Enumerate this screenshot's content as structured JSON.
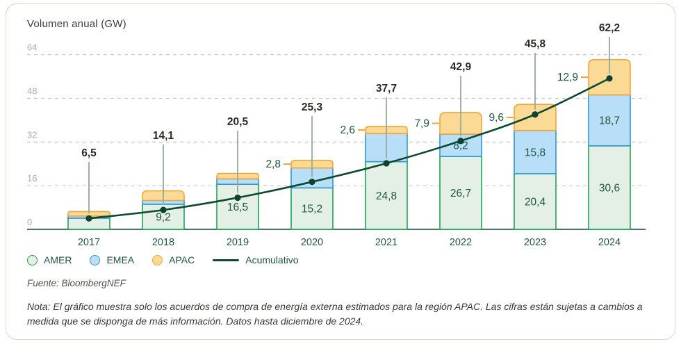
{
  "chart_data": {
    "type": "bar",
    "stacked": true,
    "title": "Volumen anual (GW)",
    "categories": [
      "2017",
      "2018",
      "2019",
      "2020",
      "2021",
      "2022",
      "2023",
      "2024"
    ],
    "series": [
      {
        "name": "AMER",
        "fill": "#e4f0e6",
        "stroke": "#1ea355",
        "values": [
          4.1,
          9.2,
          16.5,
          15.2,
          24.8,
          26.7,
          20.4,
          30.6
        ],
        "value_labels": [
          "",
          "9,2",
          "16,5",
          "15,2",
          "24,8",
          "26,7",
          "20,4",
          "30,6"
        ]
      },
      {
        "name": "EMEA",
        "fill": "#b9def7",
        "stroke": "#2e97d8",
        "values": [
          0.8,
          1.4,
          2.0,
          7.3,
          10.3,
          8.2,
          15.8,
          18.7
        ],
        "value_labels": [
          "",
          "",
          "",
          "",
          "",
          "8,2",
          "15,8",
          "18,7"
        ]
      },
      {
        "name": "APAC",
        "fill": "#fbda96",
        "stroke": "#f2a43c",
        "values": [
          1.6,
          3.5,
          2.0,
          2.8,
          2.6,
          7.9,
          9.6,
          12.9
        ],
        "value_labels": [
          "",
          "",
          "",
          "2,8",
          "2,6",
          "7,9",
          "9,6",
          "12,9"
        ]
      }
    ],
    "totals_labels": [
      "6,5",
      "14,1",
      "20,5",
      "25,3",
      "37,7",
      "42,9",
      "45,8",
      "62,2"
    ],
    "line_series": {
      "name": "Acumulativo",
      "color": "#0b4a2f",
      "dot_color": "#0b4330",
      "plotted_values_axis_scale": [
        4.0,
        7.1,
        11.6,
        17.4,
        24.2,
        32.4,
        42.1,
        55.3
      ]
    },
    "y_axis": {
      "ticks": [
        0,
        16,
        32,
        48,
        64
      ],
      "max": 66,
      "grid": "dashed"
    },
    "style": {
      "grid_color": "#cdc5b8",
      "tick_label_color": "#b5ac9e",
      "axis_line_color": "#0e4a30",
      "value_label_color": "#1d5740",
      "total_label_color": "#2d2a26",
      "year_label_color": "#1d5740",
      "callout_color": "#93ab9d"
    }
  },
  "legend": {
    "items": [
      {
        "label": "AMER",
        "swatch": "circle",
        "fill": "#e4f0e6",
        "border": "#1ea355"
      },
      {
        "label": "EMEA",
        "swatch": "circle",
        "fill": "#b9def7",
        "border": "#2e97d8"
      },
      {
        "label": "APAC",
        "swatch": "circle",
        "fill": "#fbda96",
        "border": "#f2a43c"
      },
      {
        "label": "Acumulativo",
        "swatch": "line",
        "fill": "#0b4a2f",
        "border": "#0b4a2f"
      }
    ]
  },
  "footer": {
    "source": "Fuente: BloombergNEF",
    "note": "Nota: El gráfico muestra solo los acuerdos de compra de energía externa estimados para la región APAC. Las cifras están sujetas a cambios a medida que se disponga de más información. Datos hasta diciembre de 2024."
  }
}
